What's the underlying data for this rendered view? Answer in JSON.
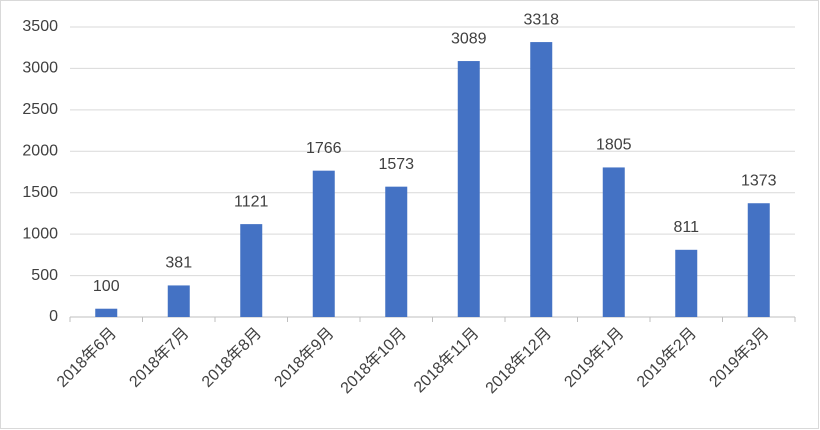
{
  "chart_data": {
    "type": "bar",
    "categories": [
      "2018年6月",
      "2018年7月",
      "2018年8月",
      "2018年9月",
      "2018年10月",
      "2018年11月",
      "2018年12月",
      "2019年1月",
      "2019年2月",
      "2019年3月"
    ],
    "values": [
      100,
      381,
      1121,
      1766,
      1573,
      3089,
      3318,
      1805,
      811,
      1373
    ],
    "color": "#4472c4",
    "ylim": [
      0,
      3500
    ],
    "yticks": [
      0,
      500,
      1000,
      1500,
      2000,
      2500,
      3000,
      3500
    ],
    "grid": true
  }
}
